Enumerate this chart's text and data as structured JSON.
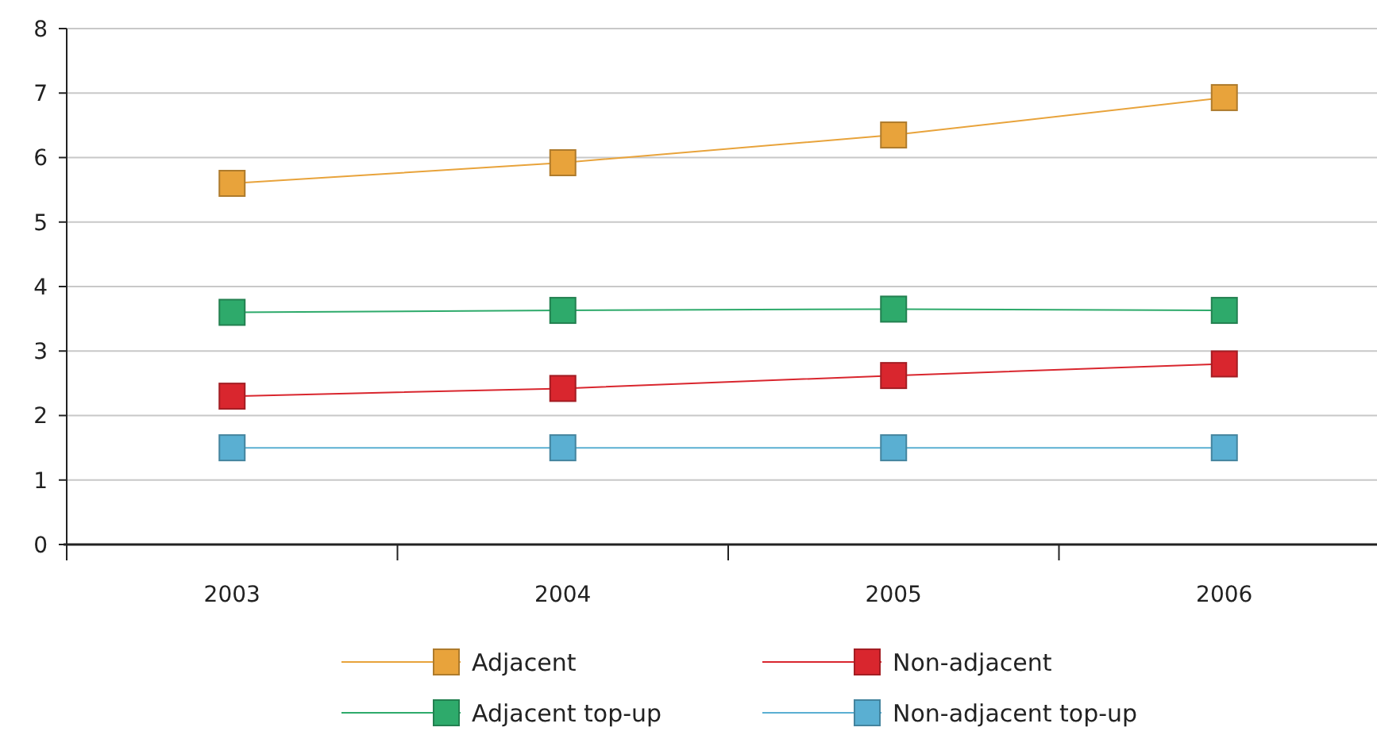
{
  "chart_data": {
    "type": "line",
    "categories": [
      "2003",
      "2004",
      "2005",
      "2006"
    ],
    "series": [
      {
        "name": "Adjacent",
        "color": "#e8a33b",
        "values": [
          5.6,
          5.92,
          6.35,
          6.93
        ]
      },
      {
        "name": "Non-adjacent",
        "color": "#d9262e",
        "values": [
          2.3,
          2.42,
          2.62,
          2.8
        ]
      },
      {
        "name": "Adjacent top-up",
        "color": "#2eaa6b",
        "values": [
          3.6,
          3.63,
          3.65,
          3.63
        ]
      },
      {
        "name": "Non-adjacent top-up",
        "color": "#5aafd2",
        "values": [
          1.5,
          1.5,
          1.5,
          1.5
        ]
      }
    ],
    "ylim": [
      0,
      8
    ],
    "yticks": [
      0,
      1,
      2,
      3,
      4,
      5,
      6,
      7,
      8
    ],
    "grid": "y",
    "legend": "bottom",
    "marker": "square",
    "line_style": "solid"
  }
}
